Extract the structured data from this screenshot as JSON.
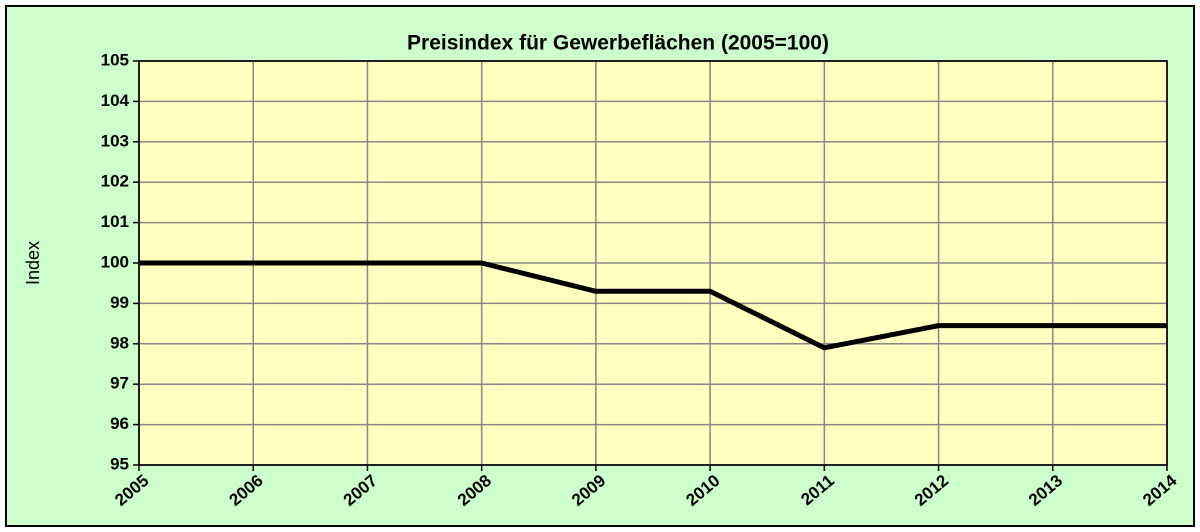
{
  "chart_data": {
    "type": "line",
    "title": "Preisindex für Gewerbeflächen (2005=100)",
    "y_label": "Index",
    "x": [
      2005,
      2006,
      2007,
      2008,
      2009,
      2010,
      2011,
      2012,
      2013,
      2014
    ],
    "values": [
      100,
      100,
      100,
      100,
      99.3,
      99.3,
      97.9,
      98.45,
      98.45,
      98.45
    ],
    "color": "#000000",
    "xlim": [
      2005,
      2014
    ],
    "xticks": [
      2005,
      2006,
      2007,
      2008,
      2009,
      2010,
      2011,
      2012,
      2013,
      2014
    ],
    "ylim": [
      95,
      105
    ],
    "yticks": [
      95,
      96,
      97,
      98,
      99,
      100,
      101,
      102,
      103,
      104,
      105
    ],
    "grid": true
  }
}
